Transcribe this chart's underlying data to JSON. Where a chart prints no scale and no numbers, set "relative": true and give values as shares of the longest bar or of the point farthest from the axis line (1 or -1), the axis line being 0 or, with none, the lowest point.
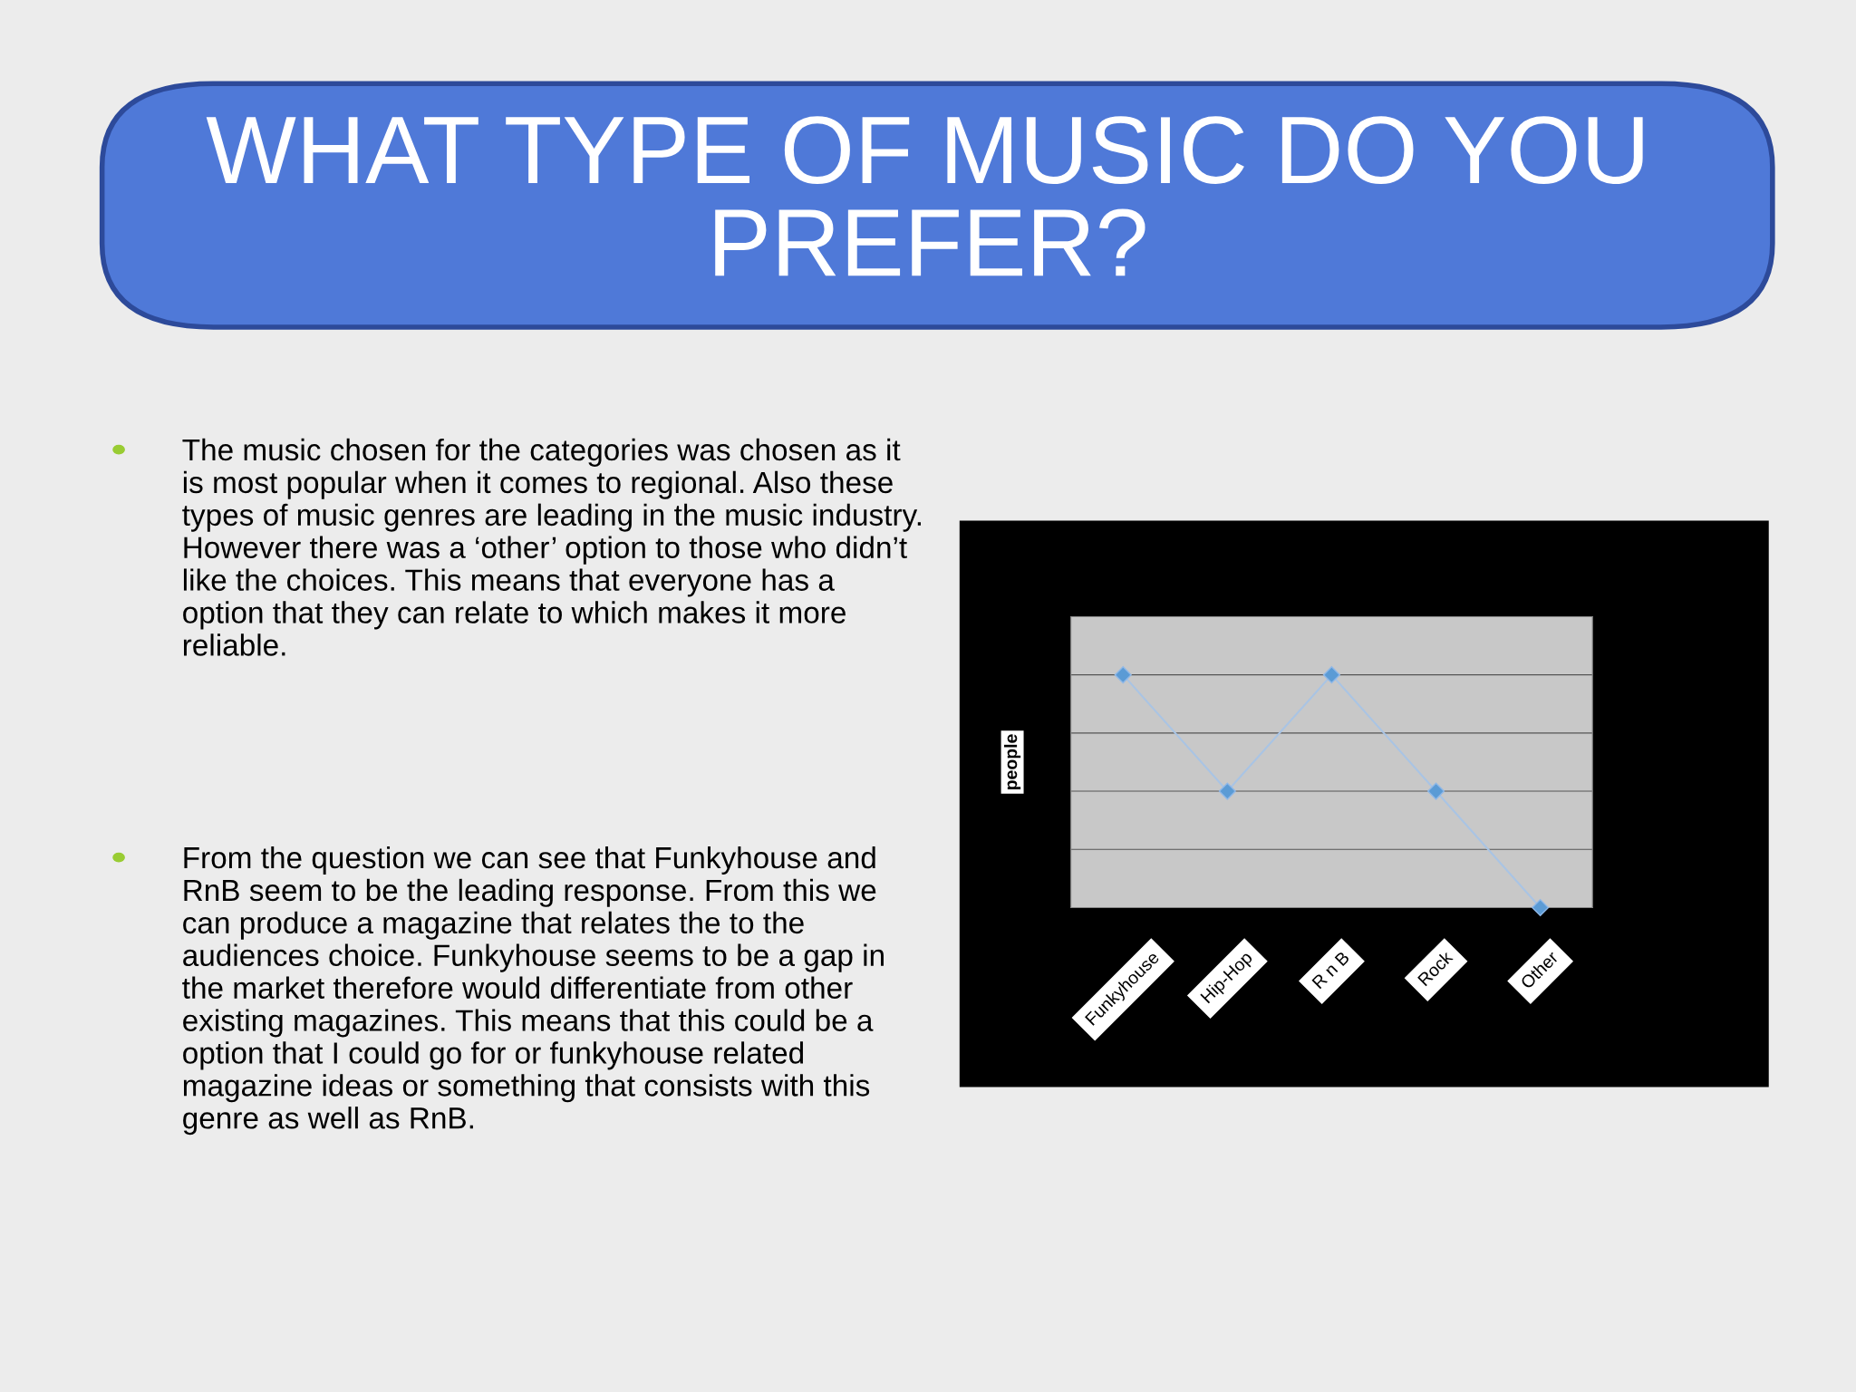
{
  "chart_data": {
    "type": "line",
    "title": "WHAT TYPE OF MUSIC DO YOU PREFER?",
    "ylabel": "people",
    "categories": [
      "Funkyhouse",
      "Hip-Hop",
      "R n B",
      "Rock",
      "Other"
    ],
    "series": [
      {
        "color": "#a9c4e4",
        "values": [
          1,
          0.5,
          1,
          0.5,
          0
        ]
      }
    ],
    "relative": true,
    "marker": "diamond",
    "line_style": "solid",
    "grid": "y",
    "annotations": [
      "The music chosen for the categories was chosen as it is most popular when it comes to regional. Also these types of music genres are leading in the music industry. However there was a ‘other’ option to those who didn’t like the choices. This means that everyone has a option that they can relate to which makes it more reliable.",
      "From the question we can see that Funkyhouse and RnB seem to be the leading response. From this we can produce a magazine that relates the to the audiences choice. Funkyhouse seems to be a gap in the market therefore would differentiate from other existing magazines. This means that this could be a option that I could go for or funkyhouse related magazine ideas or something that consists with this genre as well as RnB."
    ]
  }
}
